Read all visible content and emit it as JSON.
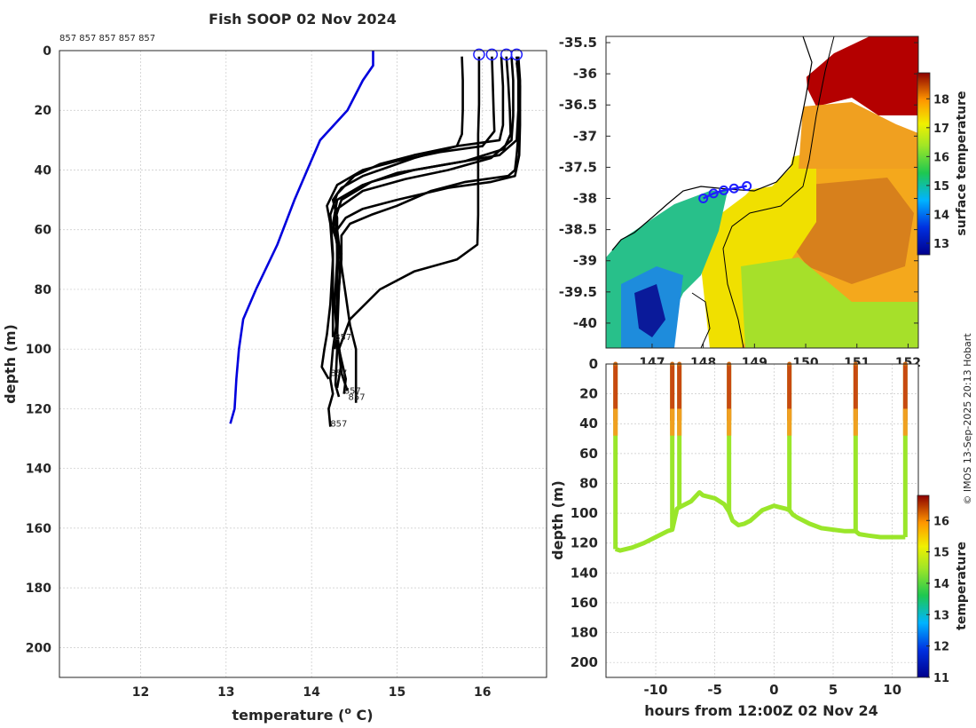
{
  "title": "Fish SOOP 02 Nov 2024",
  "credit": "© IMOS 13-Sep-2025 20:13 Hobart",
  "colors": {
    "profile": "#000000",
    "climatology": "#0000dd",
    "marker": "#1f1fff",
    "grid": "#c8c8c8"
  },
  "chart_data": [
    {
      "id": "profiles",
      "type": "line",
      "title": "Fish SOOP 02 Nov 2024",
      "xlabel": "temperature (o C)",
      "xlabel_main": "temperature (",
      "xlabel_sup": "o",
      "xlabel_tail": " C)",
      "ylabel": "depth (m)",
      "xlim": [
        11.05,
        16.75
      ],
      "ylim": [
        210,
        0
      ],
      "xticks": [
        12,
        13,
        14,
        15,
        16
      ],
      "yticks": [
        0,
        20,
        40,
        60,
        80,
        100,
        120,
        140,
        160,
        180,
        200
      ],
      "top_labels": "857 857 857 857 857",
      "surface_markers": [
        15.96,
        16.11,
        16.28,
        16.4
      ],
      "end_labels": [
        {
          "text": "857",
          "x": 14.27,
          "y": 97
        },
        {
          "text": "857",
          "x": 14.22,
          "y": 109
        },
        {
          "text": "857",
          "x": 14.38,
          "y": 115
        },
        {
          "text": "857",
          "x": 14.43,
          "y": 117
        },
        {
          "text": "857",
          "x": 14.22,
          "y": 126
        }
      ],
      "climatology": {
        "name": "climatology",
        "points": [
          [
            14.72,
            0
          ],
          [
            14.72,
            5
          ],
          [
            14.6,
            10
          ],
          [
            14.42,
            20
          ],
          [
            14.1,
            30
          ],
          [
            13.95,
            40
          ],
          [
            13.8,
            50
          ],
          [
            13.6,
            65
          ],
          [
            13.35,
            80
          ],
          [
            13.2,
            90
          ],
          [
            13.15,
            100
          ],
          [
            13.12,
            110
          ],
          [
            13.1,
            120
          ],
          [
            13.05,
            125
          ]
        ]
      },
      "series": [
        {
          "name": "cast-1",
          "points": [
            [
              15.76,
              2
            ],
            [
              15.77,
              10
            ],
            [
              15.77,
              20
            ],
            [
              15.76,
              28
            ],
            [
              15.7,
              32
            ],
            [
              15.2,
              36
            ],
            [
              14.9,
              39
            ],
            [
              14.6,
              42
            ],
            [
              14.35,
              46
            ],
            [
              14.25,
              50
            ],
            [
              14.3,
              56
            ],
            [
              14.3,
              70
            ],
            [
              14.27,
              85
            ],
            [
              14.3,
              96
            ],
            [
              14.27,
              100
            ]
          ]
        },
        {
          "name": "cast-2",
          "points": [
            [
              15.96,
              2
            ],
            [
              15.96,
              10
            ],
            [
              15.96,
              18
            ],
            [
              15.95,
              28
            ],
            [
              15.95,
              40
            ],
            [
              15.95,
              55
            ],
            [
              15.94,
              65
            ],
            [
              15.7,
              70
            ],
            [
              15.2,
              74
            ],
            [
              14.8,
              80
            ],
            [
              14.45,
              90
            ],
            [
              14.32,
              100
            ],
            [
              14.4,
              110
            ],
            [
              14.38,
              115
            ]
          ]
        },
        {
          "name": "cast-3",
          "points": [
            [
              16.11,
              2
            ],
            [
              16.12,
              10
            ],
            [
              16.13,
              20
            ],
            [
              16.14,
              27
            ],
            [
              16.0,
              32
            ],
            [
              15.5,
              34
            ],
            [
              15.0,
              37
            ],
            [
              14.6,
              40
            ],
            [
              14.3,
              45
            ],
            [
              14.18,
              52
            ],
            [
              14.22,
              58
            ],
            [
              14.25,
              70
            ],
            [
              14.22,
              85
            ],
            [
              14.18,
              95
            ],
            [
              14.15,
              100
            ],
            [
              14.12,
              106
            ],
            [
              14.2,
              110
            ]
          ]
        },
        {
          "name": "cast-4",
          "points": [
            [
              16.28,
              2
            ],
            [
              16.3,
              10
            ],
            [
              16.32,
              20
            ],
            [
              16.33,
              28
            ],
            [
              16.25,
              33
            ],
            [
              15.8,
              37
            ],
            [
              15.2,
              40
            ],
            [
              14.7,
              44
            ],
            [
              14.35,
              50
            ],
            [
              14.28,
              56
            ],
            [
              14.3,
              66
            ],
            [
              14.3,
              82
            ],
            [
              14.3,
              100
            ],
            [
              14.28,
              112
            ],
            [
              14.32,
              116
            ]
          ]
        },
        {
          "name": "cast-5",
          "points": [
            [
              16.4,
              2
            ],
            [
              16.42,
              10
            ],
            [
              16.42,
              20
            ],
            [
              16.4,
              30
            ],
            [
              16.2,
              35
            ],
            [
              15.6,
              38
            ],
            [
              15.0,
              41
            ],
            [
              14.6,
              45
            ],
            [
              14.3,
              50
            ],
            [
              14.25,
              58
            ],
            [
              14.3,
              65
            ],
            [
              14.33,
              75
            ],
            [
              14.3,
              90
            ],
            [
              14.25,
              100
            ],
            [
              14.22,
              110
            ],
            [
              14.25,
              115
            ],
            [
              14.2,
              120
            ],
            [
              14.22,
              126
            ]
          ]
        },
        {
          "name": "cast-6",
          "points": [
            [
              16.34,
              2
            ],
            [
              16.36,
              10
            ],
            [
              16.36,
              22
            ],
            [
              16.34,
              30
            ],
            [
              16.1,
              36
            ],
            [
              15.6,
              40
            ],
            [
              15.1,
              43
            ],
            [
              14.6,
              47
            ],
            [
              14.3,
              53
            ],
            [
              14.25,
              60
            ],
            [
              14.35,
              68
            ],
            [
              14.32,
              80
            ],
            [
              14.3,
              95
            ],
            [
              14.35,
              105
            ],
            [
              14.3,
              113
            ]
          ]
        },
        {
          "name": "cast-7",
          "points": [
            [
              16.4,
              4
            ],
            [
              16.44,
              12
            ],
            [
              16.43,
              25
            ],
            [
              16.4,
              35
            ],
            [
              16.38,
              40
            ],
            [
              16.3,
              42
            ],
            [
              15.8,
              44
            ],
            [
              15.4,
              47
            ],
            [
              15.0,
              52
            ],
            [
              14.7,
              55
            ],
            [
              14.45,
              58
            ],
            [
              14.35,
              62
            ],
            [
              14.35,
              70
            ],
            [
              14.3,
              85
            ],
            [
              14.3,
              95
            ],
            [
              14.35,
              108
            ],
            [
              14.42,
              114
            ]
          ]
        },
        {
          "name": "cast-8",
          "points": [
            [
              16.42,
              2
            ],
            [
              16.44,
              10
            ],
            [
              16.44,
              25
            ],
            [
              16.43,
              35
            ],
            [
              16.38,
              42
            ],
            [
              16.1,
              44
            ],
            [
              15.6,
              46
            ],
            [
              15.0,
              50
            ],
            [
              14.6,
              53
            ],
            [
              14.4,
              56
            ],
            [
              14.3,
              60
            ],
            [
              14.35,
              72
            ],
            [
              14.4,
              82
            ],
            [
              14.45,
              92
            ],
            [
              14.52,
              100
            ],
            [
              14.52,
              110
            ],
            [
              14.52,
              118
            ]
          ]
        },
        {
          "name": "cast-9",
          "points": [
            [
              16.22,
              2
            ],
            [
              16.24,
              12
            ],
            [
              16.24,
              25
            ],
            [
              16.2,
              30
            ],
            [
              15.7,
              32
            ],
            [
              15.2,
              35
            ],
            [
              14.8,
              38
            ],
            [
              14.5,
              42
            ],
            [
              14.3,
              48
            ],
            [
              14.22,
              55
            ],
            [
              14.25,
              68
            ],
            [
              14.25,
              82
            ],
            [
              14.25,
              96
            ]
          ]
        }
      ]
    },
    {
      "id": "map",
      "type": "heatmap",
      "ylim": [
        -40.4,
        -35.4
      ],
      "xlim": [
        146.1,
        152.2
      ],
      "yticks": [
        -35.5,
        -36,
        -36.5,
        -37,
        -37.5,
        -38,
        -38.5,
        -39,
        -39.5,
        -40
      ],
      "ytick_labels": [
        "-35.5",
        "-36",
        "-36.5",
        "-37",
        "-37.5",
        "-38",
        "-38.5",
        "-39",
        "-39.5",
        "-40"
      ],
      "xticks": [
        147,
        148,
        149,
        150,
        151,
        152
      ],
      "colorbar_label": "surface temperature",
      "colorbar_ticks": [
        13,
        14,
        15,
        16,
        17,
        18
      ],
      "colorbar_range": [
        12.6,
        18.9
      ],
      "track_points": [
        [
          148.0,
          -38.0
        ],
        [
          148.2,
          -37.92
        ],
        [
          148.4,
          -37.87
        ],
        [
          148.6,
          -37.84
        ],
        [
          148.85,
          -37.8
        ]
      ]
    },
    {
      "id": "timeseries",
      "type": "scatter",
      "xlabel": "hours from 12:00Z 02 Nov 24",
      "ylabel": "depth (m)",
      "xlim": [
        -14.2,
        12.2
      ],
      "ylim": [
        210,
        0
      ],
      "xticks": [
        -10,
        -5,
        0,
        5,
        10
      ],
      "yticks": [
        0,
        20,
        40,
        60,
        80,
        100,
        120,
        140,
        160,
        180,
        200
      ],
      "colorbar_label": "temperature",
      "colorbar_ticks": [
        11,
        12,
        13,
        14,
        15,
        16
      ],
      "colorbar_range": [
        11,
        16.8
      ],
      "casts": [
        -13.4,
        -8.6,
        -8.0,
        -3.8,
        1.3,
        6.9,
        11.1
      ],
      "bottom_trace": [
        [
          -13.4,
          124
        ],
        [
          -13,
          125
        ],
        [
          -12,
          123
        ],
        [
          -11,
          120
        ],
        [
          -10,
          116
        ],
        [
          -9,
          112
        ],
        [
          -8.6,
          111
        ],
        [
          -8.2,
          97
        ],
        [
          -8,
          96
        ],
        [
          -7,
          92
        ],
        [
          -6.3,
          86
        ],
        [
          -6,
          88
        ],
        [
          -5,
          90
        ],
        [
          -4.2,
          94
        ],
        [
          -3.8,
          99
        ],
        [
          -3.5,
          105
        ],
        [
          -3,
          108
        ],
        [
          -2.5,
          107
        ],
        [
          -2,
          105
        ],
        [
          -1,
          98
        ],
        [
          0,
          95
        ],
        [
          0.5,
          96
        ],
        [
          1,
          97
        ],
        [
          1.3,
          98
        ],
        [
          1.6,
          101
        ],
        [
          2,
          103
        ],
        [
          3,
          107
        ],
        [
          4,
          110
        ],
        [
          5,
          111
        ],
        [
          6,
          112
        ],
        [
          6.9,
          112
        ],
        [
          7.2,
          114
        ],
        [
          8,
          115
        ],
        [
          9,
          116
        ],
        [
          10,
          116
        ],
        [
          11.1,
          116
        ]
      ]
    }
  ]
}
